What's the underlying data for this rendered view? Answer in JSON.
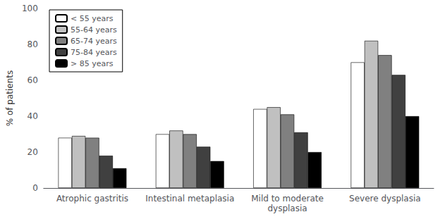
{
  "chart_data": {
    "type": "bar",
    "categories": [
      "Atrophic gastritis",
      "Intestinal metaplasia",
      "Mild to moderate\ndysplasia",
      "Severe dysplasia"
    ],
    "series": [
      {
        "name": "< 55 years",
        "color": "#ffffff",
        "values": [
          28,
          30,
          44,
          70
        ]
      },
      {
        "name": "55-64 years",
        "color": "#c0c0c0",
        "values": [
          29,
          32,
          45,
          82
        ]
      },
      {
        "name": "65-74 years",
        "color": "#808080",
        "values": [
          28,
          30,
          41,
          74
        ]
      },
      {
        "name": "75-84 years",
        "color": "#404040",
        "values": [
          18,
          23,
          31,
          63
        ]
      },
      {
        "name": "> 85 years",
        "color": "#000000",
        "values": [
          11,
          15,
          20,
          40
        ]
      }
    ],
    "ylabel": "% of patients",
    "ylim": [
      0,
      100
    ],
    "yticks": [
      0,
      20,
      40,
      60,
      80,
      100
    ],
    "grid": false,
    "legend": "upper left"
  }
}
